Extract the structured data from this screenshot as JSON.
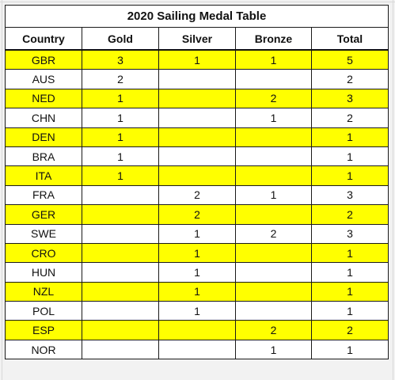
{
  "title": "2020 Sailing Medal Table",
  "columns": [
    "Country",
    "Gold",
    "Silver",
    "Bronze",
    "Total"
  ],
  "highlight_color": "#ffff00",
  "rows": [
    {
      "country": "GBR",
      "gold": "3",
      "silver": "1",
      "bronze": "1",
      "total": "5",
      "highlight": true
    },
    {
      "country": "AUS",
      "gold": "2",
      "silver": "",
      "bronze": "",
      "total": "2",
      "highlight": false
    },
    {
      "country": "NED",
      "gold": "1",
      "silver": "",
      "bronze": "2",
      "total": "3",
      "highlight": true
    },
    {
      "country": "CHN",
      "gold": "1",
      "silver": "",
      "bronze": "1",
      "total": "2",
      "highlight": false
    },
    {
      "country": "DEN",
      "gold": "1",
      "silver": "",
      "bronze": "",
      "total": "1",
      "highlight": true
    },
    {
      "country": "BRA",
      "gold": "1",
      "silver": "",
      "bronze": "",
      "total": "1",
      "highlight": false
    },
    {
      "country": "ITA",
      "gold": "1",
      "silver": "",
      "bronze": "",
      "total": "1",
      "highlight": true
    },
    {
      "country": "FRA",
      "gold": "",
      "silver": "2",
      "bronze": "1",
      "total": "3",
      "highlight": false
    },
    {
      "country": "GER",
      "gold": "",
      "silver": "2",
      "bronze": "",
      "total": "2",
      "highlight": true
    },
    {
      "country": "SWE",
      "gold": "",
      "silver": "1",
      "bronze": "2",
      "total": "3",
      "highlight": false
    },
    {
      "country": "CRO",
      "gold": "",
      "silver": "1",
      "bronze": "",
      "total": "1",
      "highlight": true
    },
    {
      "country": "HUN",
      "gold": "",
      "silver": "1",
      "bronze": "",
      "total": "1",
      "highlight": false
    },
    {
      "country": "NZL",
      "gold": "",
      "silver": "1",
      "bronze": "",
      "total": "1",
      "highlight": true
    },
    {
      "country": "POL",
      "gold": "",
      "silver": "1",
      "bronze": "",
      "total": "1",
      "highlight": false
    },
    {
      "country": "ESP",
      "gold": "",
      "silver": "",
      "bronze": "2",
      "total": "2",
      "highlight": true
    },
    {
      "country": "NOR",
      "gold": "",
      "silver": "",
      "bronze": "1",
      "total": "1",
      "highlight": false
    }
  ]
}
